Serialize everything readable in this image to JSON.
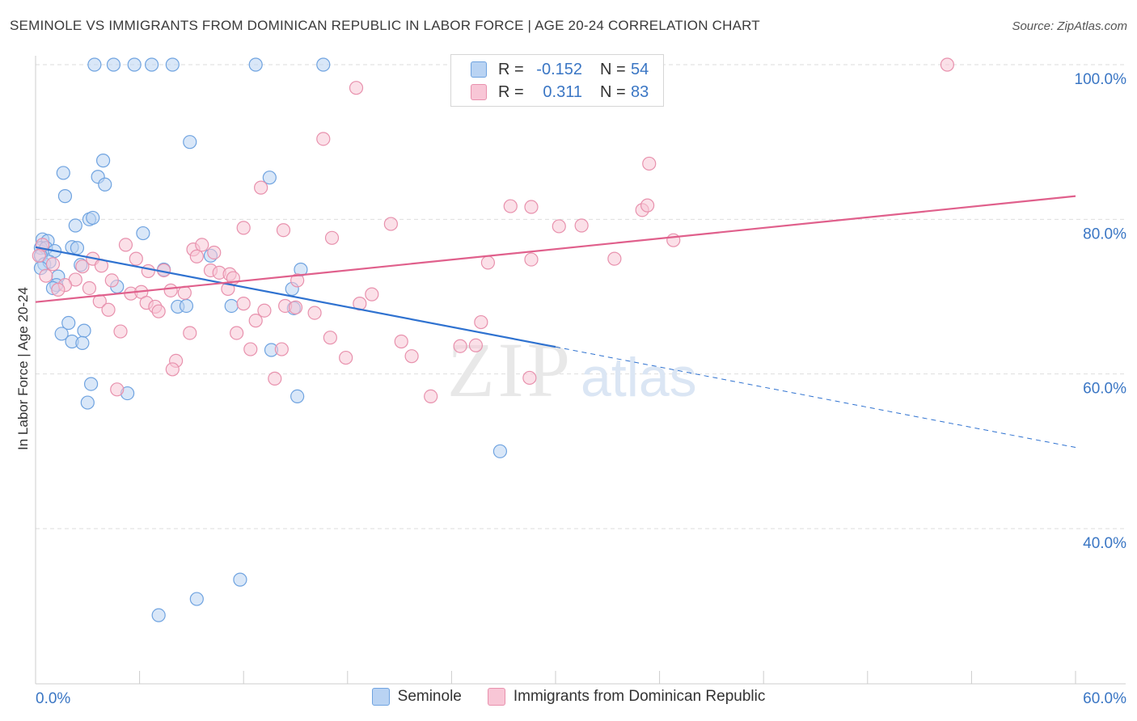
{
  "title": "SEMINOLE VS IMMIGRANTS FROM DOMINICAN REPUBLIC IN LABOR FORCE | AGE 20-24 CORRELATION CHART",
  "source": "Source: ZipAtlas.com",
  "watermark": {
    "zip": "ZIP",
    "atlas": "atlas"
  },
  "legend": {
    "r_label": "R =",
    "n_label": "N =",
    "rows": [
      {
        "r": "-0.152",
        "n": "54",
        "color": "#6fa3e0",
        "fill": "#b9d3f3"
      },
      {
        "r": "0.311",
        "n": "83",
        "color": "#e891ad",
        "fill": "#f8c6d6"
      }
    ]
  },
  "chart_data": {
    "type": "scatter",
    "xlabel": "",
    "ylabel": "In Labor Force | Age 20-24",
    "xlim": [
      0,
      60
    ],
    "ylim": [
      18,
      102
    ],
    "x_tick_labels": [
      {
        "value": 0,
        "label": "0.0%"
      },
      {
        "value": 60,
        "label": "60.0%"
      }
    ],
    "y_tick_labels": [
      {
        "value": 100,
        "label": "100.0%"
      },
      {
        "value": 80,
        "label": "80.0%"
      },
      {
        "value": 60,
        "label": "60.0%"
      },
      {
        "value": 40,
        "label": "40.0%"
      }
    ],
    "grid": "horizontal dashed",
    "series": [
      {
        "name": "Seminole",
        "color": "#6fa3e0",
        "fill": "#b9d3f3",
        "line_color": "#2f72d0",
        "trend": {
          "x0": 0,
          "y0": 76.4,
          "x1": 30,
          "y1": 63.5,
          "dash_to_x": 60,
          "dash_to_y": 50.5
        },
        "points": [
          [
            3.4,
            100
          ],
          [
            4.5,
            100
          ],
          [
            5.7,
            100
          ],
          [
            6.7,
            100
          ],
          [
            7.9,
            100
          ],
          [
            12.7,
            100
          ],
          [
            16.6,
            100
          ],
          [
            8.9,
            90
          ],
          [
            1.6,
            86
          ],
          [
            3.9,
            87.6
          ],
          [
            3.6,
            85.5
          ],
          [
            4.0,
            84.5
          ],
          [
            13.5,
            85.4
          ],
          [
            1.7,
            83
          ],
          [
            3.1,
            80
          ],
          [
            3.3,
            80.2
          ],
          [
            2.3,
            79.2
          ],
          [
            6.2,
            78.2
          ],
          [
            0.4,
            77.4
          ],
          [
            0.7,
            77.2
          ],
          [
            0.3,
            76.3
          ],
          [
            0.6,
            76.3
          ],
          [
            2.1,
            76.4
          ],
          [
            2.4,
            76.3
          ],
          [
            1.1,
            75.9
          ],
          [
            0.3,
            75.3
          ],
          [
            0.5,
            74.2
          ],
          [
            0.8,
            74.5
          ],
          [
            0.3,
            73.7
          ],
          [
            2.6,
            74.1
          ],
          [
            7.4,
            73.5
          ],
          [
            10.1,
            75.3
          ],
          [
            15.3,
            73.5
          ],
          [
            1.3,
            72.6
          ],
          [
            1.2,
            71.5
          ],
          [
            4.7,
            71.3
          ],
          [
            1.0,
            71.1
          ],
          [
            14.8,
            71
          ],
          [
            8.2,
            68.7
          ],
          [
            8.7,
            68.8
          ],
          [
            11.3,
            68.8
          ],
          [
            14.9,
            68.5
          ],
          [
            1.9,
            66.6
          ],
          [
            1.5,
            65.2
          ],
          [
            2.8,
            65.6
          ],
          [
            2.1,
            64.2
          ],
          [
            2.7,
            64
          ],
          [
            13.6,
            63.1
          ],
          [
            3.2,
            58.7
          ],
          [
            5.3,
            57.5
          ],
          [
            3.0,
            56.3
          ],
          [
            15.1,
            57.1
          ],
          [
            26.8,
            50
          ],
          [
            11.8,
            33.4
          ],
          [
            9.3,
            30.9
          ],
          [
            7.1,
            28.8
          ]
        ]
      },
      {
        "name": "Immigrants from Dominican Republic",
        "color": "#e891ad",
        "fill": "#f8c6d6",
        "line_color": "#e0608c",
        "trend": {
          "x0": 0,
          "y0": 69.3,
          "x1": 60,
          "y1": 83
        },
        "points": [
          [
            52.6,
            100
          ],
          [
            18.5,
            97
          ],
          [
            16.6,
            90.4
          ],
          [
            35.4,
            87.2
          ],
          [
            13.0,
            84.1
          ],
          [
            27.4,
            81.7
          ],
          [
            28.6,
            81.6
          ],
          [
            35.0,
            81.2
          ],
          [
            35.3,
            81.8
          ],
          [
            20.5,
            79.4
          ],
          [
            30.2,
            79.1
          ],
          [
            31.5,
            79.2
          ],
          [
            12.0,
            78.9
          ],
          [
            14.3,
            78.6
          ],
          [
            17.1,
            77.6
          ],
          [
            36.8,
            77.3
          ],
          [
            0.4,
            76.7
          ],
          [
            5.2,
            76.7
          ],
          [
            9.1,
            76.1
          ],
          [
            9.6,
            76.7
          ],
          [
            10.3,
            75.7
          ],
          [
            0.2,
            75.3
          ],
          [
            9.3,
            75.2
          ],
          [
            3.3,
            74.9
          ],
          [
            5.8,
            74.9
          ],
          [
            26.1,
            74.4
          ],
          [
            28.6,
            74.8
          ],
          [
            33.4,
            74.9
          ],
          [
            1.0,
            74.2
          ],
          [
            2.7,
            73.9
          ],
          [
            3.8,
            74
          ],
          [
            7.4,
            73.4
          ],
          [
            6.5,
            73.3
          ],
          [
            10.1,
            73.4
          ],
          [
            10.6,
            73.1
          ],
          [
            11.2,
            72.9
          ],
          [
            0.6,
            72.7
          ],
          [
            2.3,
            72.2
          ],
          [
            4.4,
            72.1
          ],
          [
            11.4,
            72.4
          ],
          [
            15.1,
            72.1
          ],
          [
            1.7,
            71.5
          ],
          [
            3.1,
            71.1
          ],
          [
            1.3,
            70.9
          ],
          [
            11.1,
            71
          ],
          [
            5.5,
            70.4
          ],
          [
            6.1,
            70.6
          ],
          [
            7.8,
            70.8
          ],
          [
            8.6,
            70.5
          ],
          [
            19.4,
            70.3
          ],
          [
            3.7,
            69.4
          ],
          [
            6.4,
            69.2
          ],
          [
            18.7,
            69.1
          ],
          [
            12.0,
            69.1
          ],
          [
            14.4,
            68.8
          ],
          [
            6.9,
            68.7
          ],
          [
            15.0,
            68.6
          ],
          [
            4.2,
            68.3
          ],
          [
            7.1,
            68.1
          ],
          [
            13.2,
            68.2
          ],
          [
            16.1,
            67.9
          ],
          [
            12.7,
            66.9
          ],
          [
            25.7,
            66.7
          ],
          [
            4.9,
            65.5
          ],
          [
            8.9,
            65.3
          ],
          [
            11.6,
            65.3
          ],
          [
            17.0,
            64.7
          ],
          [
            21.1,
            64.2
          ],
          [
            24.5,
            63.6
          ],
          [
            25.4,
            63.7
          ],
          [
            12.4,
            63.2
          ],
          [
            14.2,
            63.2
          ],
          [
            17.9,
            62.1
          ],
          [
            21.7,
            62.3
          ],
          [
            8.1,
            61.7
          ],
          [
            7.9,
            60.6
          ],
          [
            13.8,
            59.4
          ],
          [
            28.5,
            59.5
          ],
          [
            4.7,
            58
          ],
          [
            22.8,
            57.1
          ]
        ]
      }
    ]
  },
  "bottom_legend": [
    {
      "label": "Seminole"
    },
    {
      "label": "Immigrants from Dominican Republic"
    }
  ]
}
